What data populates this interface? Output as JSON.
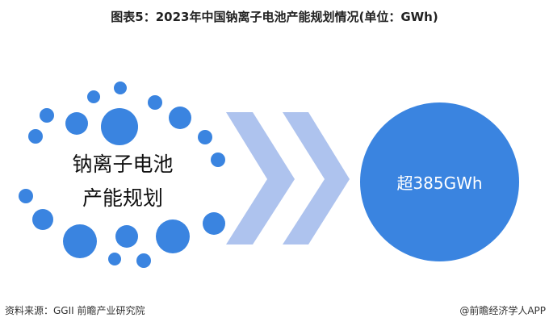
{
  "title": "图表5：2023年中国钠离子电池产能规划情况(单位：GWh)",
  "left_label": {
    "line1": "钠离子电池",
    "line2": "产能规划"
  },
  "result": "超385GWh",
  "source": "资料来源：GGII 前瞻产业研究院",
  "credit": "@前瞻经济学人APP",
  "watermark": "前瞻产业研究院",
  "colors": {
    "dot": "#3a84e0",
    "chevron": "#aec3ee",
    "circle": "#3a84e0"
  }
}
